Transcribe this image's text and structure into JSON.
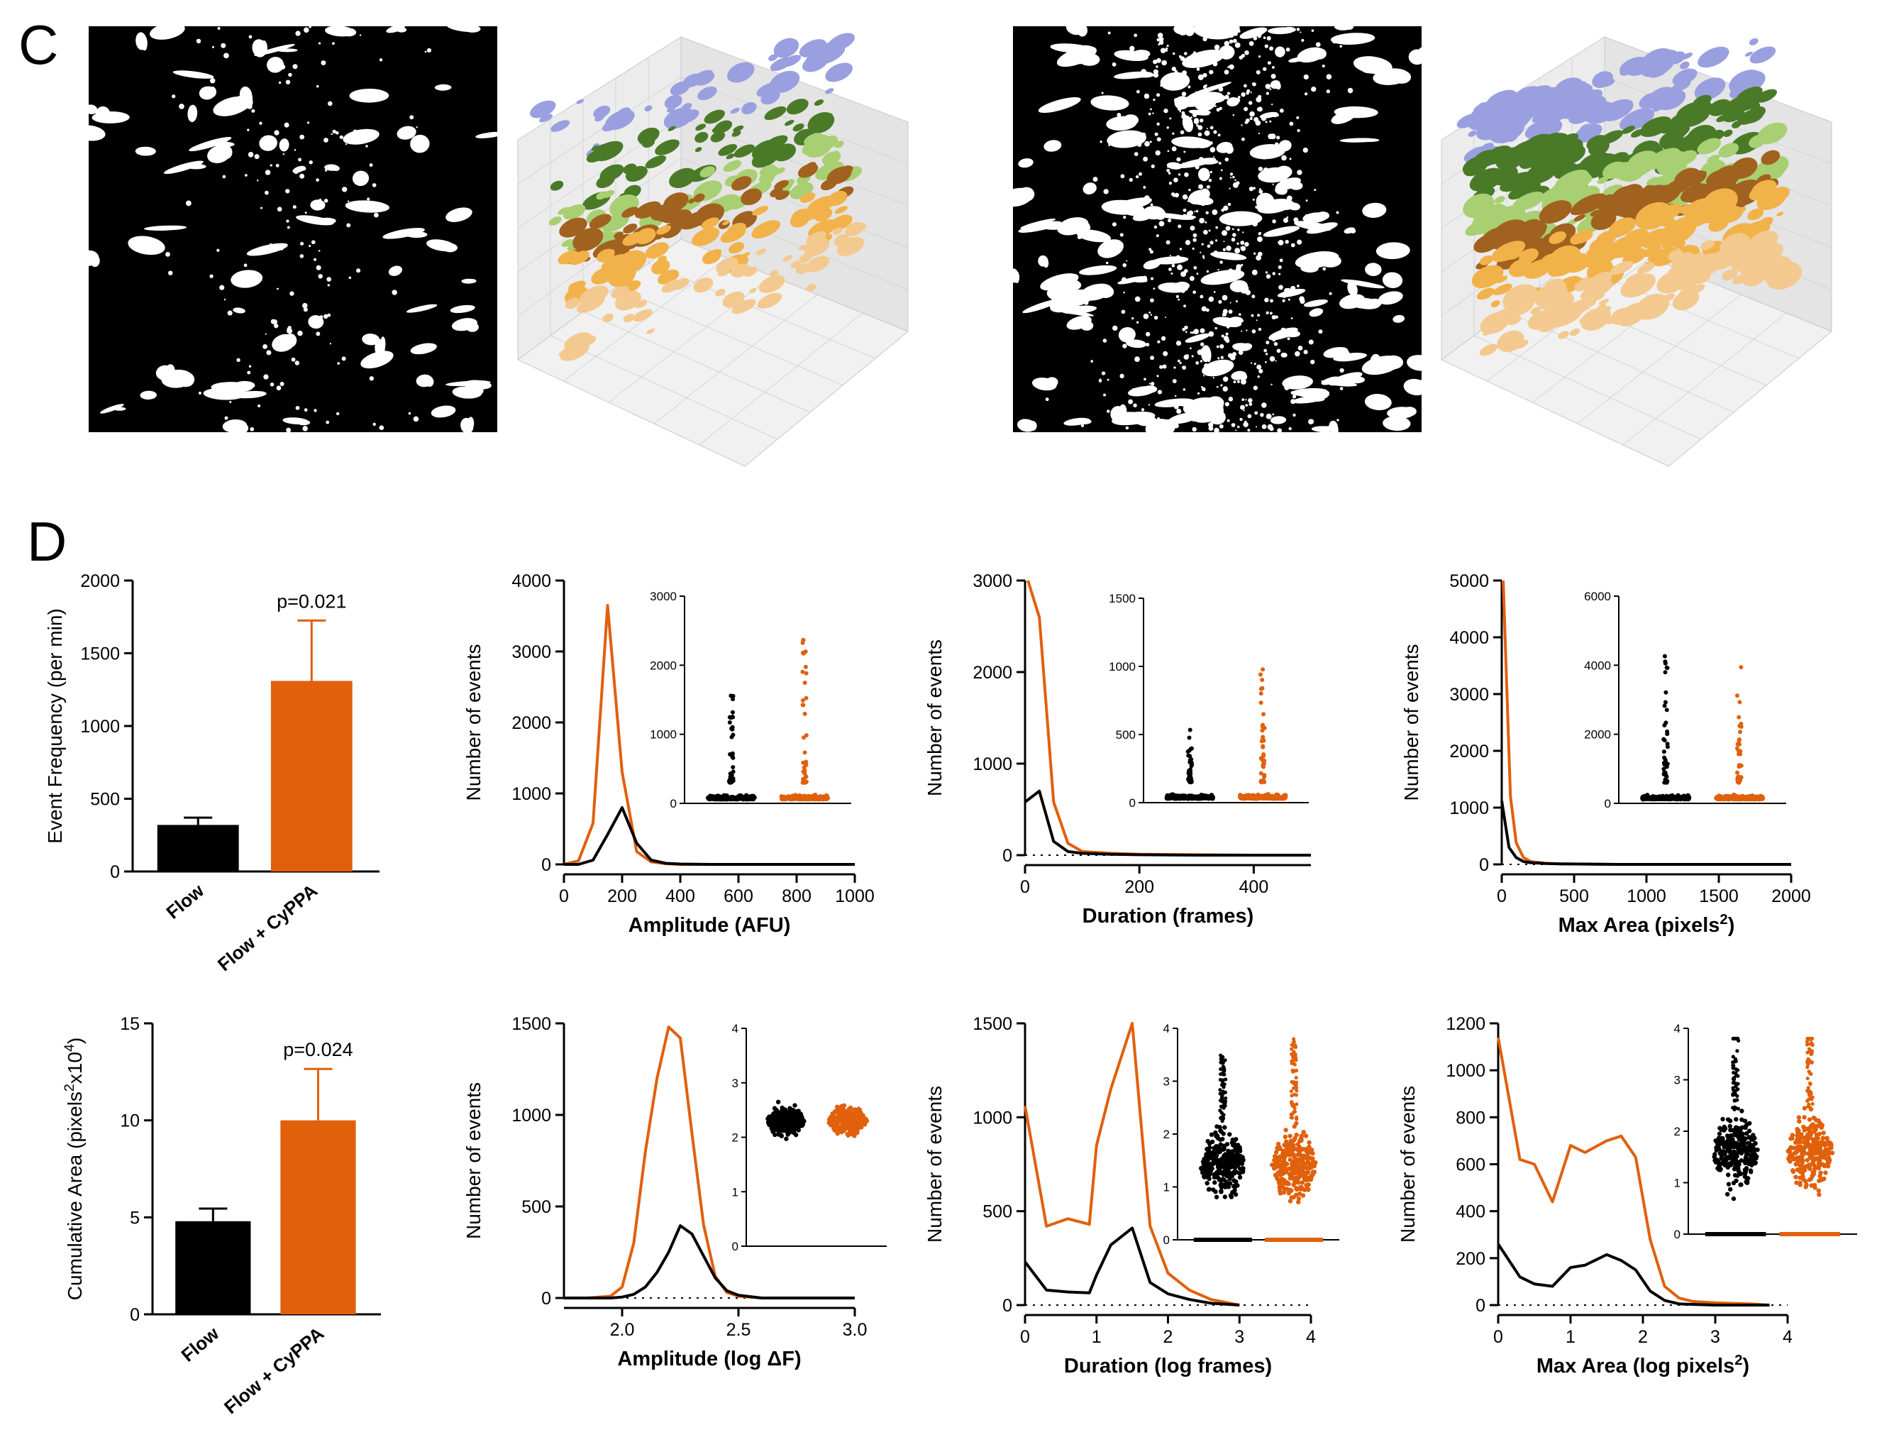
{
  "panels": {
    "C": "C",
    "D": "D"
  },
  "colors": {
    "control": "#000000",
    "treated": "#e0600c",
    "cluster_blue": "#9a9fe0",
    "cluster_green_dark": "#4a7a28",
    "cluster_green_light": "#a8cf72",
    "cluster_orange": "#f2b24a",
    "cluster_peach": "#f3c98f",
    "cluster_brown": "#a0621e"
  },
  "chart_data": [
    {
      "id": "bar_freq",
      "type": "bar",
      "ylabel": "Event Frequency (per min)",
      "categories": [
        "Flow",
        "Flow + CyPPA"
      ],
      "values": [
        320,
        1310
      ],
      "errors": [
        50,
        415
      ],
      "ylim": [
        0,
        2000
      ],
      "yticks": [
        0,
        500,
        1000,
        1500,
        2000
      ],
      "yticklabels": [
        "0",
        "500",
        "1000",
        "1500",
        "2000"
      ],
      "annotation": "p=0.021"
    },
    {
      "id": "bar_area",
      "type": "bar",
      "ylabel": "Cumulative Area (pixels²x10⁴)",
      "ylabel_parts": [
        "Cumulative Area (pixels",
        "2",
        "x10",
        "4",
        ")"
      ],
      "categories": [
        "Flow",
        "Flow + CyPPA"
      ],
      "values": [
        4.8,
        10.0
      ],
      "errors": [
        0.65,
        2.65
      ],
      "ylim": [
        0,
        15
      ],
      "yticks": [
        0,
        5,
        10,
        15
      ],
      "yticklabels": [
        "0",
        "5",
        "10",
        "15"
      ],
      "annotation": "p=0.024"
    },
    {
      "id": "amp",
      "type": "line",
      "xlabel": "Amplitude (AFU)",
      "ylabel": "Number of events",
      "xlim": [
        0,
        1000
      ],
      "ylim": [
        0,
        4000
      ],
      "xticks": [
        0,
        200,
        400,
        600,
        800,
        1000
      ],
      "xticklabels": [
        "0",
        "200",
        "400",
        "600",
        "800",
        "1000"
      ],
      "yticks": [
        0,
        1000,
        2000,
        3000,
        4000
      ],
      "yticklabels": [
        "0",
        "1000",
        "2000",
        "3000",
        "4000"
      ],
      "baseline": false,
      "series": [
        {
          "name": "Flow",
          "color": "#000000",
          "x": [
            0,
            50,
            100,
            150,
            200,
            250,
            300,
            350,
            400,
            500,
            600,
            700,
            800,
            1000
          ],
          "y": [
            0,
            0,
            60,
            420,
            800,
            300,
            60,
            15,
            5,
            0,
            0,
            0,
            0,
            0
          ]
        },
        {
          "name": "Flow + CyPPA",
          "color": "#e0600c",
          "x": [
            0,
            50,
            100,
            150,
            200,
            250,
            300,
            350,
            400,
            500,
            600,
            700,
            800,
            1000
          ],
          "y": [
            0,
            50,
            580,
            3650,
            1300,
            180,
            35,
            10,
            0,
            0,
            0,
            0,
            0,
            0
          ]
        }
      ],
      "inset": {
        "ylim": [
          0,
          3000
        ],
        "yticks": [
          0,
          1000,
          2000,
          3000
        ],
        "yticklabels": [
          "0",
          "1000",
          "2000",
          "3000"
        ]
      }
    },
    {
      "id": "dur",
      "type": "line",
      "xlabel": "Duration (frames)",
      "ylabel": "Number of events",
      "xlim": [
        0,
        500
      ],
      "ylim": [
        0,
        3000
      ],
      "xticks": [
        0,
        200,
        400
      ],
      "xticklabels": [
        "0",
        "200",
        "400"
      ],
      "yticks": [
        0,
        1000,
        2000,
        3000
      ],
      "yticklabels": [
        "0",
        "1000",
        "2000",
        "3000"
      ],
      "baseline": true,
      "series": [
        {
          "name": "Flow",
          "color": "#000000",
          "x": [
            0,
            25,
            50,
            75,
            100,
            150,
            200,
            300,
            400,
            500
          ],
          "y": [
            580,
            700,
            150,
            40,
            20,
            10,
            5,
            0,
            0,
            0
          ]
        },
        {
          "name": "Flow + CyPPA",
          "color": "#e0600c",
          "x": [
            5,
            25,
            50,
            75,
            100,
            150,
            200,
            300,
            400,
            500
          ],
          "y": [
            3000,
            2600,
            580,
            130,
            40,
            20,
            10,
            5,
            0,
            0
          ]
        }
      ],
      "inset": {
        "ylim": [
          0,
          1500
        ],
        "yticks": [
          0,
          500,
          1000,
          1500
        ],
        "yticklabels": [
          "0",
          "500",
          "1000",
          "1500"
        ]
      }
    },
    {
      "id": "area",
      "type": "line",
      "xlabel": "Max Area (pixels²)",
      "xlabel_parts": [
        "Max Area (pixels",
        "2",
        ")"
      ],
      "ylabel": "Number of events",
      "xlim": [
        0,
        2000
      ],
      "ylim": [
        0,
        5000
      ],
      "xticks": [
        0,
        500,
        1000,
        1500,
        2000
      ],
      "xticklabels": [
        "0",
        "500",
        "1000",
        "1500",
        "2000"
      ],
      "yticks": [
        0,
        1000,
        2000,
        3000,
        4000,
        5000
      ],
      "yticklabels": [
        "0",
        "1000",
        "2000",
        "3000",
        "4000",
        "5000"
      ],
      "baseline": true,
      "series": [
        {
          "name": "Flow",
          "color": "#000000",
          "x": [
            0,
            50,
            100,
            150,
            200,
            300,
            400,
            600,
            800,
            1000,
            1500,
            2000
          ],
          "y": [
            1120,
            300,
            120,
            50,
            30,
            15,
            10,
            5,
            0,
            0,
            0,
            0
          ]
        },
        {
          "name": "Flow + CyPPA",
          "color": "#e0600c",
          "x": [
            10,
            60,
            100,
            150,
            200,
            300,
            400,
            600,
            800,
            1000,
            1500,
            2000
          ],
          "y": [
            5000,
            1200,
            380,
            120,
            50,
            20,
            10,
            5,
            0,
            0,
            0,
            0
          ]
        }
      ],
      "inset": {
        "ylim": [
          0,
          6000
        ],
        "yticks": [
          0,
          2000,
          4000,
          6000
        ],
        "yticklabels": [
          "0",
          "2000",
          "4000",
          "6000"
        ]
      }
    },
    {
      "id": "amp_log",
      "type": "line",
      "xlabel": "Amplitude (log ΔF)",
      "ylabel": "Number of events",
      "xlim": [
        1.75,
        3.0
      ],
      "ylim": [
        0,
        1500
      ],
      "xticks": [
        2.0,
        2.5,
        3.0
      ],
      "xticklabels": [
        "2.0",
        "2.5",
        "3.0"
      ],
      "yticks": [
        0,
        500,
        1000,
        1500
      ],
      "yticklabels": [
        "0",
        "500",
        "1000",
        "1500"
      ],
      "baseline": true,
      "series": [
        {
          "name": "Flow",
          "color": "#000000",
          "x": [
            1.75,
            1.85,
            1.95,
            2.0,
            2.05,
            2.1,
            2.15,
            2.2,
            2.25,
            2.3,
            2.35,
            2.4,
            2.45,
            2.5,
            2.6,
            2.7,
            3.0
          ],
          "y": [
            0,
            0,
            0,
            5,
            20,
            60,
            140,
            250,
            395,
            350,
            230,
            110,
            40,
            15,
            0,
            0,
            0
          ]
        },
        {
          "name": "Flow + CyPPA",
          "color": "#e0600c",
          "x": [
            1.75,
            1.85,
            1.95,
            2.0,
            2.05,
            2.1,
            2.15,
            2.2,
            2.25,
            2.3,
            2.35,
            2.4,
            2.45,
            2.5,
            2.6,
            2.7,
            3.0
          ],
          "y": [
            0,
            0,
            10,
            60,
            300,
            800,
            1200,
            1480,
            1420,
            900,
            400,
            120,
            30,
            10,
            0,
            0,
            0
          ]
        }
      ],
      "inset": {
        "ylim": [
          0,
          4
        ],
        "yticks": [
          0,
          1,
          2,
          3,
          4
        ],
        "yticklabels": [
          "0",
          "1",
          "2",
          "3",
          "4"
        ]
      }
    },
    {
      "id": "dur_log",
      "type": "line",
      "xlabel": "Duration (log frames)",
      "ylabel": "Number of events",
      "xlim": [
        0,
        4
      ],
      "ylim": [
        0,
        1500
      ],
      "xticks": [
        0,
        1,
        2,
        3,
        4
      ],
      "xticklabels": [
        "0",
        "1",
        "2",
        "3",
        "4"
      ],
      "yticks": [
        0,
        500,
        1000,
        1500
      ],
      "yticklabels": [
        "0",
        "500",
        "1000",
        "1500"
      ],
      "baseline": true,
      "series": [
        {
          "name": "Flow",
          "color": "#000000",
          "x": [
            0,
            0.3,
            0.6,
            0.9,
            1.0,
            1.2,
            1.5,
            1.75,
            2.0,
            2.3,
            2.6,
            3.0
          ],
          "y": [
            230,
            80,
            70,
            65,
            160,
            320,
            410,
            120,
            60,
            30,
            10,
            0
          ]
        },
        {
          "name": "Flow + CyPPA",
          "color": "#e0600c",
          "x": [
            0,
            0.3,
            0.6,
            0.9,
            1.0,
            1.2,
            1.5,
            1.75,
            2.0,
            2.3,
            2.6,
            3.0
          ],
          "y": [
            1060,
            420,
            460,
            430,
            850,
            1150,
            1500,
            420,
            170,
            80,
            30,
            0
          ]
        }
      ],
      "inset": {
        "ylim": [
          0,
          4
        ],
        "yticks": [
          0,
          1,
          2,
          3,
          4
        ],
        "yticklabels": [
          "0",
          "1",
          "2",
          "3",
          "4"
        ]
      }
    },
    {
      "id": "area_log",
      "type": "line",
      "xlabel": "Max Area (log pixels²)",
      "xlabel_parts": [
        "Max Area (log pixels",
        "2",
        ")"
      ],
      "ylabel": "Number of events",
      "xlim": [
        0,
        4
      ],
      "ylim": [
        0,
        1200
      ],
      "xticks": [
        0,
        1,
        2,
        3,
        4
      ],
      "xticklabels": [
        "0",
        "1",
        "2",
        "3",
        "4"
      ],
      "yticks": [
        0,
        200,
        400,
        600,
        800,
        1000,
        1200
      ],
      "yticklabels": [
        "0",
        "200",
        "400",
        "600",
        "800",
        "1000",
        "1200"
      ],
      "baseline": true,
      "series": [
        {
          "name": "Flow",
          "color": "#000000",
          "x": [
            0,
            0.3,
            0.5,
            0.75,
            1.0,
            1.2,
            1.5,
            1.7,
            1.9,
            2.1,
            2.3,
            2.5,
            3.0,
            3.5,
            3.75
          ],
          "y": [
            260,
            120,
            90,
            80,
            160,
            170,
            215,
            190,
            150,
            60,
            20,
            5,
            0,
            0,
            0
          ]
        },
        {
          "name": "Flow + CyPPA",
          "color": "#e0600c",
          "x": [
            0,
            0.3,
            0.5,
            0.75,
            1.0,
            1.2,
            1.5,
            1.7,
            1.9,
            2.1,
            2.3,
            2.5,
            2.7,
            3.0,
            3.5,
            3.75
          ],
          "y": [
            1140,
            620,
            600,
            440,
            680,
            650,
            700,
            720,
            630,
            280,
            80,
            30,
            15,
            10,
            5,
            0
          ]
        }
      ],
      "inset": {
        "ylim": [
          0,
          4
        ],
        "yticks": [
          0,
          1,
          2,
          3,
          4
        ],
        "yticklabels": [
          "0",
          "1",
          "2",
          "3",
          "4"
        ]
      }
    }
  ]
}
